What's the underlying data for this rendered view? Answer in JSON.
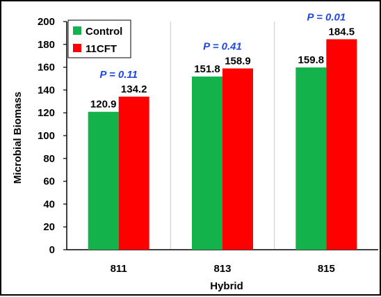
{
  "chart_data": {
    "type": "bar",
    "xlabel": "Hybrid",
    "ylabel": "Microbial Biomass",
    "ylim": [
      0,
      200
    ],
    "yticks": [
      0,
      20,
      40,
      60,
      80,
      100,
      120,
      140,
      160,
      180,
      200
    ],
    "categories": [
      "811",
      "813",
      "815"
    ],
    "series": [
      {
        "name": "Control",
        "color": "#13b24a",
        "values": [
          120.9,
          151.8,
          159.8
        ],
        "labels": [
          "120.9",
          "151.8",
          "159.8"
        ]
      },
      {
        "name": "11CFT",
        "color": "#ff0000",
        "values": [
          134.2,
          158.9,
          184.5
        ],
        "labels": [
          "134.2",
          "158.9",
          "184.5"
        ]
      }
    ],
    "annotations": [
      "P = 0.11",
      "P = 0.41",
      "P = 0.01"
    ],
    "annotation_color": "#1f49e0",
    "grid": "vertical category separators",
    "legend_position": "top-left"
  }
}
